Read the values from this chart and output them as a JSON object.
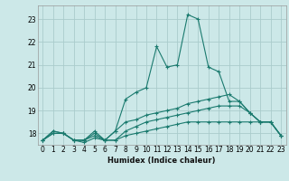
{
  "xlabel": "Humidex (Indice chaleur)",
  "background_color": "#cce8e8",
  "grid_color": "#aacccc",
  "line_color": "#1a7a6e",
  "xlim": [
    -0.5,
    23.5
  ],
  "ylim": [
    17.5,
    23.6
  ],
  "yticks": [
    18,
    19,
    20,
    21,
    22,
    23
  ],
  "xticks": [
    0,
    1,
    2,
    3,
    4,
    5,
    6,
    7,
    8,
    9,
    10,
    11,
    12,
    13,
    14,
    15,
    16,
    17,
    18,
    19,
    20,
    21,
    22,
    23
  ],
  "series": [
    [
      17.7,
      18.1,
      18.0,
      17.7,
      17.7,
      18.1,
      17.7,
      18.1,
      19.5,
      19.8,
      20.0,
      21.8,
      20.9,
      21.0,
      23.2,
      23.0,
      20.9,
      20.7,
      19.4,
      19.4,
      18.9,
      18.5,
      18.5,
      17.9
    ],
    [
      17.7,
      18.1,
      18.0,
      17.7,
      17.7,
      18.0,
      17.7,
      18.1,
      18.5,
      18.6,
      18.8,
      18.9,
      19.0,
      19.1,
      19.3,
      19.4,
      19.5,
      19.6,
      19.7,
      19.4,
      18.9,
      18.5,
      18.5,
      17.9
    ],
    [
      17.7,
      18.0,
      18.0,
      17.7,
      17.7,
      17.9,
      17.7,
      17.7,
      18.1,
      18.3,
      18.5,
      18.6,
      18.7,
      18.8,
      18.9,
      19.0,
      19.1,
      19.2,
      19.2,
      19.2,
      18.9,
      18.5,
      18.5,
      17.9
    ],
    [
      17.7,
      18.0,
      18.0,
      17.7,
      17.6,
      17.8,
      17.7,
      17.7,
      17.9,
      18.0,
      18.1,
      18.2,
      18.3,
      18.4,
      18.5,
      18.5,
      18.5,
      18.5,
      18.5,
      18.5,
      18.5,
      18.5,
      18.5,
      17.9
    ]
  ]
}
